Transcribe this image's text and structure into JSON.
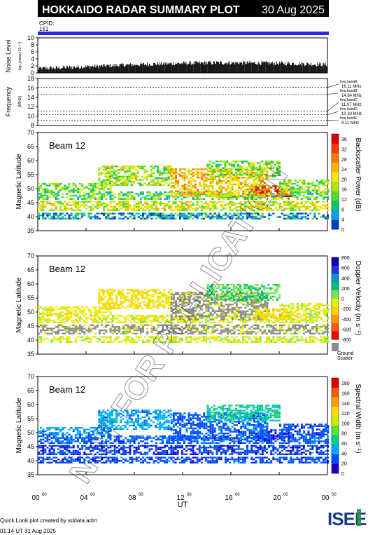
{
  "header": {
    "title": "HOKKAIDO RADAR SUMMARY PLOT",
    "date": "30 Aug 2025",
    "cpid_label": "CPID:",
    "cpid_value": "151"
  },
  "noise_panel": {
    "ylabel": "Noise Level",
    "ylabel_small": "log₁₀(noise×10⁻¹⁰)",
    "ticks": [
      "0",
      "2",
      "4",
      "6",
      "8",
      "10"
    ]
  },
  "freq_panel": {
    "ylabel": "Frequency",
    "ylabel_unit": "(MHz)",
    "ticks": [
      "8",
      "10",
      "12",
      "14",
      "16",
      "18"
    ],
    "bands": [
      {
        "label": "freq bandA",
        "value": "16.11 MHz",
        "mhz": 16.11
      },
      {
        "label": "freq bandB",
        "value": "14.64 MHz",
        "mhz": 14.64
      },
      {
        "label": "freq bandC",
        "value": "11.07 MHz",
        "mhz": 11.07
      },
      {
        "label": "freq bandD",
        "value": "10.30 MHz",
        "mhz": 10.3
      },
      {
        "label": "freq bandE",
        "value": "9.11 MHz",
        "mhz": 9.11
      }
    ]
  },
  "panels": [
    {
      "beam_label": "Beam 12",
      "ylabel": "Magnetic Latitude",
      "cbar_label": "Backscatter Power (dB)",
      "cbar_ticks": [
        "0",
        "4",
        "8",
        "12",
        "16",
        "20",
        "24",
        "28",
        "32",
        "36"
      ],
      "cbar_colors": [
        "#003cc8",
        "#00a0ff",
        "#00c864",
        "#50dc28",
        "#b4e600",
        "#ffe600",
        "#ffb400",
        "#ff7800",
        "#ff3c00",
        "#dc0000"
      ],
      "ground_scatter": false
    },
    {
      "beam_label": "Beam 12",
      "ylabel": "Magnetic Latitude",
      "cbar_label": "Doppler Velocity (m s⁻¹)",
      "cbar_ticks": [
        "-800",
        "-600",
        "-400",
        "-200",
        "0",
        "200",
        "400",
        "600",
        "800"
      ],
      "cbar_colors": [
        "#ff0000",
        "#ff5a00",
        "#ff9600",
        "#ffd200",
        "#e6f000",
        "#78e650",
        "#00be78",
        "#0096d2",
        "#2832dc",
        "#1400b4"
      ],
      "ground_scatter": true,
      "ground_label_1": "Ground",
      "ground_label_2": "Scatter",
      "ground_color": "#8c8c8c"
    },
    {
      "beam_label": "Beam 12",
      "ylabel": "Magnetic Latitude",
      "cbar_label": "Spectral Width (m s⁻¹)",
      "cbar_ticks": [
        "0",
        "20",
        "40",
        "60",
        "80",
        "100",
        "120",
        "140",
        "160",
        "180"
      ],
      "cbar_colors": [
        "#1e00c8",
        "#0050ff",
        "#00aaff",
        "#00d28c",
        "#50e632",
        "#c8f000",
        "#ffdc00",
        "#ffa000",
        "#ff5a00",
        "#e10000"
      ],
      "ground_scatter": false
    }
  ],
  "lat_ticks": [
    "35",
    "40",
    "45",
    "50",
    "55",
    "60",
    "65",
    "70"
  ],
  "x_axis": {
    "label": "UT",
    "ticks": [
      {
        "h": "00",
        "m": "00"
      },
      {
        "h": "04",
        "m": "00"
      },
      {
        "h": "08",
        "m": "00"
      },
      {
        "h": "12",
        "m": "00"
      },
      {
        "h": "16",
        "m": "00"
      },
      {
        "h": "20",
        "m": "00"
      },
      {
        "h": "00",
        "m": "00"
      }
    ]
  },
  "watermark": "NOT FOR PUBLICATION",
  "footer": {
    "line1": "Quick Look plot created by sddata.adm",
    "line2": "01:14 UT 31 Aug 2025"
  },
  "logo": {
    "text": "ISEE",
    "colors": [
      "#1a3c8c",
      "#2a8c3c"
    ]
  },
  "chart_data": {
    "type": "heatmap",
    "title": "HOKKAIDO RADAR SUMMARY PLOT",
    "date": "30 Aug 2025",
    "x": {
      "label": "UT",
      "range_hours": [
        0,
        24
      ],
      "tick_hours": [
        0,
        4,
        8,
        12,
        16,
        20,
        24
      ]
    },
    "noise_level": {
      "range": [
        0,
        10
      ],
      "typical": [
        1.0,
        3.5
      ]
    },
    "frequency": {
      "range_mhz": [
        8,
        18
      ],
      "bands_mhz": [
        16.11,
        14.64,
        11.07,
        10.3,
        9.11
      ]
    },
    "panels": [
      {
        "quantity": "Backscatter Power (dB)",
        "ylim": [
          35,
          70
        ],
        "zlim": [
          0,
          36
        ],
        "beam": 12
      },
      {
        "quantity": "Doppler Velocity (m s⁻¹)",
        "ylim": [
          35,
          70
        ],
        "zlim": [
          -800,
          800
        ],
        "beam": 12
      },
      {
        "quantity": "Spectral Width (m s⁻¹)",
        "ylim": [
          35,
          70
        ],
        "zlim": [
          0,
          180
        ],
        "beam": 12
      }
    ],
    "scatter_regions": [
      {
        "t0": 0.0,
        "t1": 24.0,
        "lat0": 39.0,
        "lat1": 41.0,
        "power": 6,
        "vel": -60,
        "width": 25
      },
      {
        "t0": 0.0,
        "t1": 24.0,
        "lat0": 42.0,
        "lat1": 45.5,
        "power": 18,
        "vel": -50,
        "width": 20,
        "ground": true
      },
      {
        "t0": 0.0,
        "t1": 24.0,
        "lat0": 46.0,
        "lat1": 48.5,
        "power": 12,
        "vel": -90,
        "width": 30
      },
      {
        "t0": 0.0,
        "t1": 6.0,
        "lat0": 49.0,
        "lat1": 52.0,
        "power": 14,
        "vel": -120,
        "width": 40
      },
      {
        "t0": 5.0,
        "t1": 11.0,
        "lat0": 51.0,
        "lat1": 58.0,
        "power": 16,
        "vel": -160,
        "width": 45
      },
      {
        "t0": 11.0,
        "t1": 19.0,
        "lat0": 47.0,
        "lat1": 57.0,
        "power": 22,
        "vel": -60,
        "width": 30,
        "ground": true
      },
      {
        "t0": 14.0,
        "t1": 20.0,
        "lat0": 54.0,
        "lat1": 60.0,
        "power": 14,
        "vel": 150,
        "width": 60
      },
      {
        "t0": 18.0,
        "t1": 21.0,
        "lat0": 47.0,
        "lat1": 51.0,
        "power": 30,
        "vel": -200,
        "width": 20
      },
      {
        "t0": 20.0,
        "t1": 24.0,
        "lat0": 49.0,
        "lat1": 53.0,
        "power": 14,
        "vel": -80,
        "width": 25
      }
    ]
  }
}
